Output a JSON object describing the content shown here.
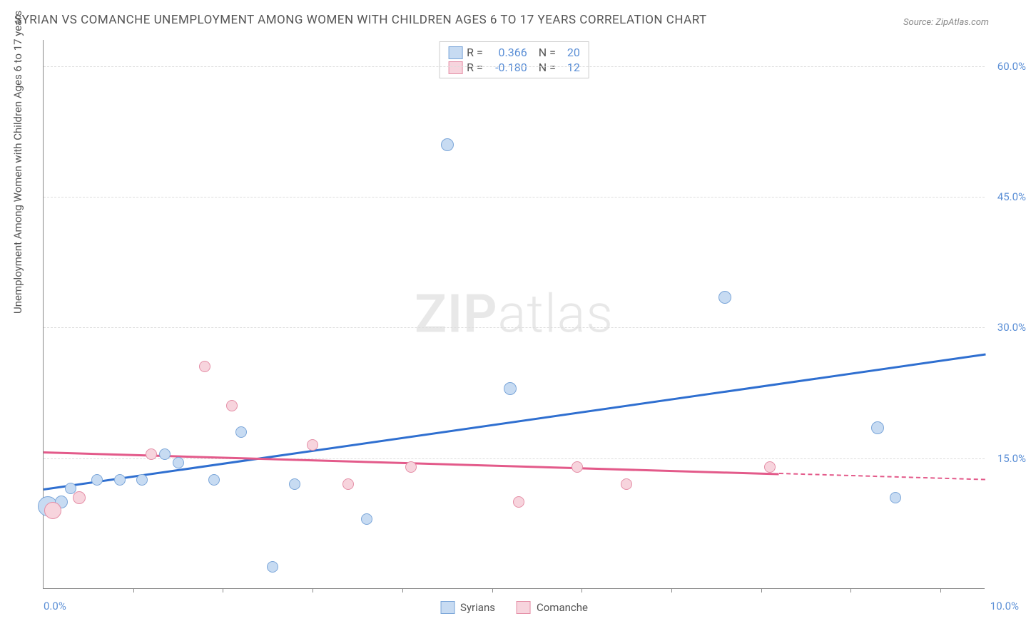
{
  "title": "SYRIAN VS COMANCHE UNEMPLOYMENT AMONG WOMEN WITH CHILDREN AGES 6 TO 17 YEARS CORRELATION CHART",
  "source": "Source: ZipAtlas.com",
  "ylabel": "Unemployment Among Women with Children Ages 6 to 17 years",
  "watermark_a": "ZIP",
  "watermark_b": "atlas",
  "chart": {
    "type": "scatter",
    "background_color": "#ffffff",
    "grid_color": "#dddddd",
    "axis_color": "#888888",
    "xlim": [
      0,
      10.5
    ],
    "ylim": [
      0,
      63
    ],
    "xtick_marks": [
      1,
      2,
      3,
      4,
      5,
      6,
      7,
      8,
      9,
      10
    ],
    "xtick_labels": [
      {
        "x": 0,
        "label": "0.0%"
      },
      {
        "x": 10,
        "label": "10.0%"
      }
    ],
    "ytick_labels": [
      {
        "y": 15,
        "label": "15.0%"
      },
      {
        "y": 30,
        "label": "30.0%"
      },
      {
        "y": 45,
        "label": "45.0%"
      },
      {
        "y": 60,
        "label": "60.0%"
      }
    ],
    "grid_y": [
      15,
      30,
      45,
      60
    ]
  },
  "series": [
    {
      "name": "Syrians",
      "fill": "#c7dbf2",
      "stroke": "#7ba6d9",
      "stroke_width": 1,
      "legend_r": "0.366",
      "legend_n": "20",
      "trend": {
        "x1": 0,
        "y1": 11.5,
        "x2": 10.5,
        "y2": 27,
        "color": "#2f6fd0",
        "width": 3,
        "dash_from_x": null
      },
      "points": [
        {
          "x": 0.05,
          "y": 9.5,
          "r": 14
        },
        {
          "x": 0.2,
          "y": 10.0,
          "r": 9
        },
        {
          "x": 0.3,
          "y": 11.5,
          "r": 8
        },
        {
          "x": 0.6,
          "y": 12.5,
          "r": 8
        },
        {
          "x": 0.85,
          "y": 12.5,
          "r": 8
        },
        {
          "x": 1.1,
          "y": 12.5,
          "r": 8
        },
        {
          "x": 1.35,
          "y": 15.5,
          "r": 8
        },
        {
          "x": 1.5,
          "y": 14.5,
          "r": 8
        },
        {
          "x": 1.9,
          "y": 12.5,
          "r": 8
        },
        {
          "x": 2.2,
          "y": 18.0,
          "r": 8
        },
        {
          "x": 2.55,
          "y": 2.5,
          "r": 8
        },
        {
          "x": 2.8,
          "y": 12.0,
          "r": 8
        },
        {
          "x": 3.6,
          "y": 8.0,
          "r": 8
        },
        {
          "x": 4.5,
          "y": 51.0,
          "r": 9
        },
        {
          "x": 5.2,
          "y": 23.0,
          "r": 9
        },
        {
          "x": 7.6,
          "y": 33.5,
          "r": 9
        },
        {
          "x": 9.3,
          "y": 18.5,
          "r": 9
        },
        {
          "x": 9.5,
          "y": 10.5,
          "r": 8
        }
      ]
    },
    {
      "name": "Comanche",
      "fill": "#f7d4dd",
      "stroke": "#e58fa7",
      "stroke_width": 1,
      "legend_r": "-0.180",
      "legend_n": "12",
      "trend": {
        "x1": 0,
        "y1": 15.8,
        "x2": 10.5,
        "y2": 12.6,
        "color": "#e35a8a",
        "width": 3,
        "dash_from_x": 8.2
      },
      "points": [
        {
          "x": 0.1,
          "y": 9.0,
          "r": 12
        },
        {
          "x": 0.4,
          "y": 10.5,
          "r": 9
        },
        {
          "x": 1.2,
          "y": 15.5,
          "r": 8
        },
        {
          "x": 1.8,
          "y": 25.5,
          "r": 8
        },
        {
          "x": 2.1,
          "y": 21.0,
          "r": 8
        },
        {
          "x": 3.0,
          "y": 16.5,
          "r": 8
        },
        {
          "x": 3.4,
          "y": 12.0,
          "r": 8
        },
        {
          "x": 4.1,
          "y": 14.0,
          "r": 8
        },
        {
          "x": 5.3,
          "y": 10.0,
          "r": 8
        },
        {
          "x": 5.95,
          "y": 14.0,
          "r": 8
        },
        {
          "x": 6.5,
          "y": 12.0,
          "r": 8
        },
        {
          "x": 8.1,
          "y": 14.0,
          "r": 8
        }
      ]
    }
  ],
  "legend_top": {
    "r_label": "R =",
    "n_label": "N =",
    "stat_color": "#5b8fd6",
    "text_color": "#555555"
  },
  "legend_bottom_labels": [
    "Syrians",
    "Comanche"
  ]
}
